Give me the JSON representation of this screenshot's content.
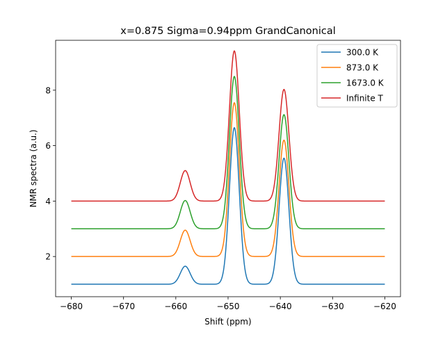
{
  "chart_data": {
    "type": "line",
    "title": "x=0.875  Sigma=0.94ppm  GrandCanonical",
    "xlabel": "Shift (ppm)",
    "ylabel": "NMR spectra (a.u.)",
    "xlim": [
      -683,
      -617
    ],
    "ylim": [
      0.55,
      9.8
    ],
    "x_range": [
      -680,
      -620
    ],
    "xticks": [
      -680,
      -670,
      -660,
      -650,
      -640,
      -630,
      -620
    ],
    "xtick_labels": [
      "−680",
      "−670",
      "−660",
      "−650",
      "−640",
      "−630",
      "−620"
    ],
    "yticks": [
      2,
      4,
      6,
      8
    ],
    "ytick_labels": [
      "2",
      "4",
      "6",
      "8"
    ],
    "grid": false,
    "legend_position": "top-right",
    "peaks": {
      "centers": [
        -658.2,
        -648.8,
        -639.3
      ],
      "sigma": 0.94
    },
    "series": [
      {
        "name": "300.0 K",
        "color": "#1f77b4",
        "baseline": 1.0,
        "peak_heights": [
          1.65,
          6.65,
          5.55
        ]
      },
      {
        "name": "873.0 K",
        "color": "#ff7f0e",
        "baseline": 2.0,
        "peak_heights": [
          2.95,
          7.55,
          6.2
        ]
      },
      {
        "name": "1673.0 K",
        "color": "#2ca02c",
        "baseline": 3.0,
        "peak_heights": [
          4.02,
          8.5,
          7.12
        ]
      },
      {
        "name": "Infinite T",
        "color": "#d62728",
        "baseline": 4.0,
        "peak_heights": [
          5.1,
          9.42,
          8.03
        ]
      }
    ]
  }
}
